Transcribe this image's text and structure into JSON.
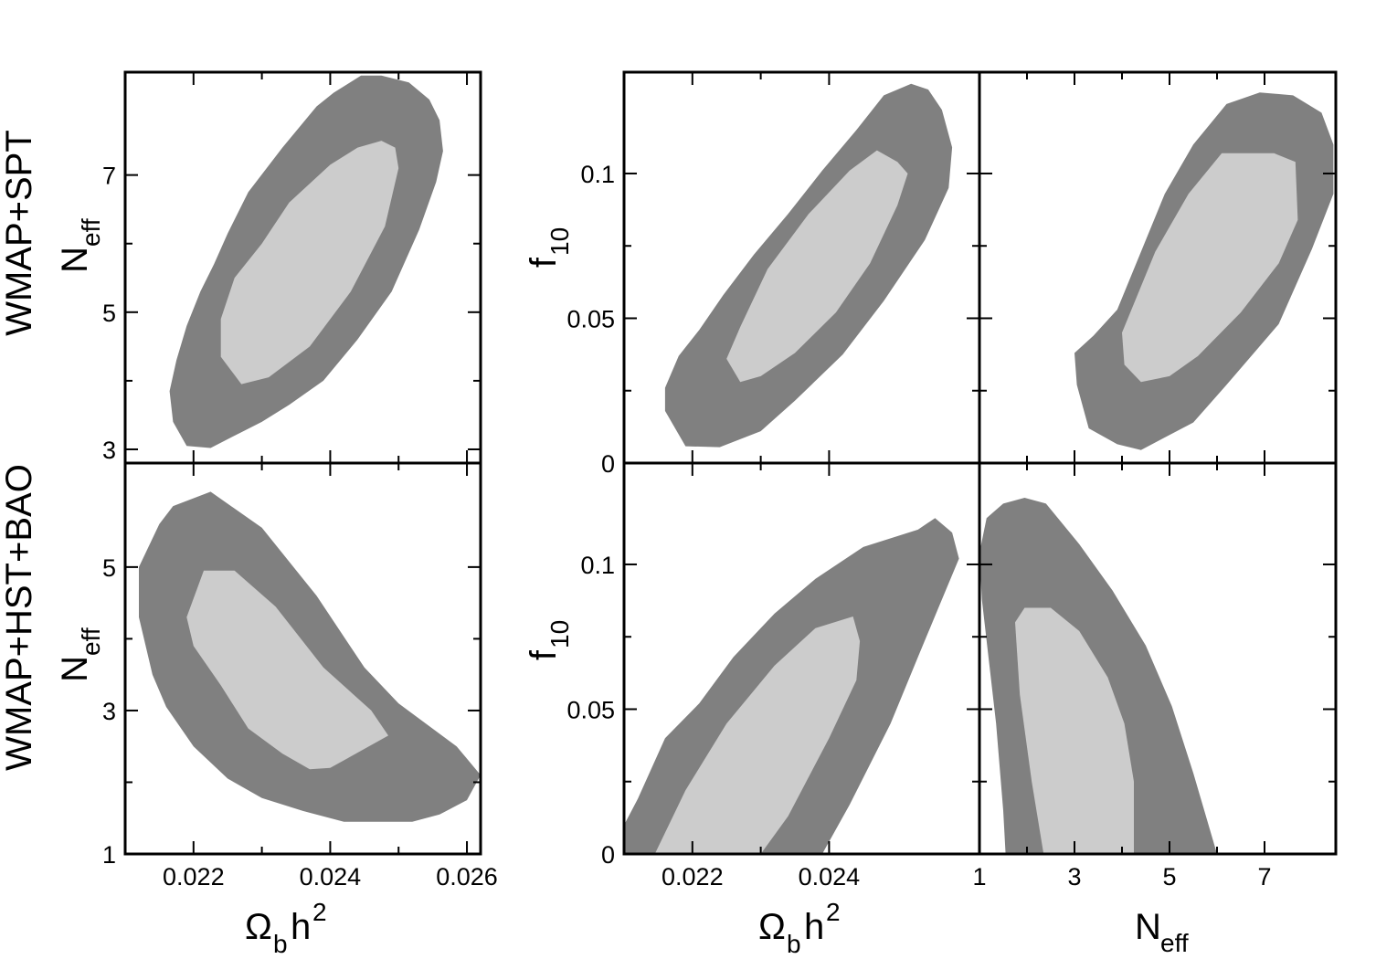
{
  "colors": {
    "outer_contour": "#808080",
    "inner_contour": "#cccccc",
    "frame": "#000000"
  },
  "row_labels": [
    "WMAP+SPT",
    "WMAP+HST+BAO"
  ],
  "axis_titles": {
    "omega": {
      "main": "Ω",
      "sub": "b",
      "rest": "h",
      "sup": "2"
    },
    "neff": {
      "main": "N",
      "sub": "eff"
    },
    "f10": {
      "main": "f",
      "sub": "10"
    }
  },
  "chart_data": [
    {
      "id": "spt-omega-neff",
      "type": "contour",
      "row": "WMAP+SPT",
      "x": "Ωbh2",
      "y": "Neff",
      "xlim": [
        0.021,
        0.0262
      ],
      "ylim": [
        2.8,
        8.5
      ],
      "xticks": [
        0.022,
        0.024,
        0.026
      ],
      "yticks": [
        3,
        5,
        7
      ],
      "yticklabels": [
        "3",
        "5",
        "7"
      ],
      "regions": [
        {
          "level": "outer",
          "points": [
            [
              0.02165,
              3.85
            ],
            [
              0.0217,
              3.4
            ],
            [
              0.0219,
              3.05
            ],
            [
              0.02225,
              3.02
            ],
            [
              0.0227,
              3.25
            ],
            [
              0.023,
              3.4
            ],
            [
              0.0234,
              3.65
            ],
            [
              0.0239,
              4.0
            ],
            [
              0.0244,
              4.6
            ],
            [
              0.0249,
              5.3
            ],
            [
              0.0253,
              6.2
            ],
            [
              0.02555,
              6.9
            ],
            [
              0.02565,
              7.35
            ],
            [
              0.0256,
              7.8
            ],
            [
              0.02545,
              8.1
            ],
            [
              0.02515,
              8.35
            ],
            [
              0.02475,
              8.45
            ],
            [
              0.02445,
              8.45
            ],
            [
              0.02405,
              8.2
            ],
            [
              0.0238,
              8.0
            ],
            [
              0.0233,
              7.4
            ],
            [
              0.0228,
              6.75
            ],
            [
              0.0225,
              6.15
            ],
            [
              0.0223,
              5.7
            ],
            [
              0.0221,
              5.3
            ],
            [
              0.0219,
              4.8
            ],
            [
              0.02175,
              4.3
            ],
            [
              0.02165,
              3.85
            ]
          ]
        },
        {
          "level": "inner",
          "points": [
            [
              0.0224,
              4.35
            ],
            [
              0.0227,
              3.95
            ],
            [
              0.0231,
              4.05
            ],
            [
              0.0237,
              4.5
            ],
            [
              0.0243,
              5.3
            ],
            [
              0.0248,
              6.25
            ],
            [
              0.025,
              7.1
            ],
            [
              0.02495,
              7.4
            ],
            [
              0.02475,
              7.5
            ],
            [
              0.0244,
              7.4
            ],
            [
              0.024,
              7.15
            ],
            [
              0.0234,
              6.6
            ],
            [
              0.023,
              6.0
            ],
            [
              0.0226,
              5.5
            ],
            [
              0.0224,
              4.9
            ],
            [
              0.0224,
              4.35
            ]
          ]
        }
      ]
    },
    {
      "id": "spt-omega-f10",
      "type": "contour",
      "row": "WMAP+SPT",
      "x": "Ωbh2",
      "y": "f10",
      "xlim": [
        0.021,
        0.0262
      ],
      "ylim": [
        0,
        0.135
      ],
      "xticks": [
        0.022,
        0.024
      ],
      "yticks": [
        0,
        0.05,
        0.1
      ],
      "yticklabels": [
        "0",
        "0.05",
        "0.1"
      ],
      "regions": [
        {
          "level": "outer",
          "points": [
            [
              0.0216,
              0.026
            ],
            [
              0.0216,
              0.018
            ],
            [
              0.0219,
              0.0058
            ],
            [
              0.0224,
              0.0055
            ],
            [
              0.023,
              0.011
            ],
            [
              0.0235,
              0.0215
            ],
            [
              0.0242,
              0.0375
            ],
            [
              0.0248,
              0.056
            ],
            [
              0.0254,
              0.077
            ],
            [
              0.02575,
              0.095
            ],
            [
              0.0258,
              0.109
            ],
            [
              0.02565,
              0.122
            ],
            [
              0.02545,
              0.129
            ],
            [
              0.0252,
              0.131
            ],
            [
              0.0248,
              0.127
            ],
            [
              0.0244,
              0.115
            ],
            [
              0.0239,
              0.101
            ],
            [
              0.0234,
              0.086
            ],
            [
              0.0229,
              0.072
            ],
            [
              0.02245,
              0.058
            ],
            [
              0.0221,
              0.046
            ],
            [
              0.0218,
              0.037
            ],
            [
              0.0216,
              0.026
            ]
          ]
        },
        {
          "level": "inner",
          "points": [
            [
              0.0225,
              0.036
            ],
            [
              0.0227,
              0.028
            ],
            [
              0.023,
              0.03
            ],
            [
              0.0235,
              0.038
            ],
            [
              0.0241,
              0.052
            ],
            [
              0.0246,
              0.069
            ],
            [
              0.025,
              0.089
            ],
            [
              0.02515,
              0.1
            ],
            [
              0.025,
              0.104
            ],
            [
              0.0247,
              0.108
            ],
            [
              0.0243,
              0.101
            ],
            [
              0.0237,
              0.086
            ],
            [
              0.0231,
              0.067
            ],
            [
              0.0227,
              0.047
            ],
            [
              0.0225,
              0.036
            ]
          ]
        }
      ]
    },
    {
      "id": "spt-neff-f10",
      "type": "contour",
      "row": "WMAP+SPT",
      "x": "Neff",
      "y": "f10",
      "xlim": [
        1,
        8.5
      ],
      "ylim": [
        0,
        0.135
      ],
      "xticks": [
        1,
        3,
        5,
        7
      ],
      "yticks": [
        0,
        0.05,
        0.1
      ],
      "regions": [
        {
          "level": "outer",
          "points": [
            [
              3.0,
              0.038
            ],
            [
              3.05,
              0.027
            ],
            [
              3.3,
              0.012
            ],
            [
              3.9,
              0.0065
            ],
            [
              4.4,
              0.0045
            ],
            [
              5.5,
              0.014
            ],
            [
              6.2,
              0.027
            ],
            [
              7.3,
              0.048
            ],
            [
              8.0,
              0.074
            ],
            [
              8.45,
              0.093
            ],
            [
              8.45,
              0.11
            ],
            [
              8.2,
              0.121
            ],
            [
              7.6,
              0.127
            ],
            [
              6.9,
              0.128
            ],
            [
              6.2,
              0.124
            ],
            [
              5.5,
              0.11
            ],
            [
              4.9,
              0.093
            ],
            [
              4.4,
              0.073
            ],
            [
              3.9,
              0.053
            ],
            [
              3.4,
              0.044
            ],
            [
              3.0,
              0.038
            ]
          ]
        },
        {
          "level": "inner",
          "points": [
            [
              4.0,
              0.045
            ],
            [
              4.05,
              0.034
            ],
            [
              4.4,
              0.028
            ],
            [
              5.0,
              0.03
            ],
            [
              5.6,
              0.037
            ],
            [
              6.5,
              0.052
            ],
            [
              7.3,
              0.069
            ],
            [
              7.7,
              0.084
            ],
            [
              7.65,
              0.104
            ],
            [
              7.2,
              0.107
            ],
            [
              6.1,
              0.107
            ],
            [
              5.4,
              0.093
            ],
            [
              4.7,
              0.073
            ],
            [
              4.0,
              0.045
            ]
          ]
        }
      ]
    },
    {
      "id": "bao-omega-neff",
      "type": "contour",
      "row": "WMAP+HST+BAO",
      "x": "Ωbh2",
      "y": "Neff",
      "xlim": [
        0.021,
        0.0262
      ],
      "ylim": [
        1,
        6.45
      ],
      "xticks": [
        0.022,
        0.024,
        0.026
      ],
      "xticklabels": [
        "0.022",
        "0.024",
        "0.026"
      ],
      "yticks": [
        1,
        3,
        5
      ],
      "yticklabels": [
        "1",
        "3",
        "5"
      ],
      "regions": [
        {
          "level": "outer",
          "points": [
            [
              0.0212,
              4.3
            ],
            [
              0.0212,
              5.0
            ],
            [
              0.0215,
              5.6
            ],
            [
              0.0217,
              5.85
            ],
            [
              0.02225,
              6.05
            ],
            [
              0.023,
              5.55
            ],
            [
              0.0238,
              4.6
            ],
            [
              0.0245,
              3.6
            ],
            [
              0.025,
              3.1
            ],
            [
              0.02585,
              2.5
            ],
            [
              0.0262,
              2.1
            ],
            [
              0.026,
              1.75
            ],
            [
              0.0256,
              1.55
            ],
            [
              0.0252,
              1.45
            ],
            [
              0.0248,
              1.45
            ],
            [
              0.0242,
              1.45
            ],
            [
              0.0236,
              1.6
            ],
            [
              0.023,
              1.78
            ],
            [
              0.0225,
              2.05
            ],
            [
              0.022,
              2.5
            ],
            [
              0.0216,
              3.05
            ],
            [
              0.0214,
              3.5
            ],
            [
              0.0212,
              4.3
            ]
          ]
        },
        {
          "level": "inner",
          "points": [
            [
              0.0219,
              4.3
            ],
            [
              0.02215,
              4.95
            ],
            [
              0.0226,
              4.95
            ],
            [
              0.0232,
              4.45
            ],
            [
              0.0239,
              3.6
            ],
            [
              0.0246,
              3.0
            ],
            [
              0.02485,
              2.65
            ],
            [
              0.024,
              2.2
            ],
            [
              0.0237,
              2.18
            ],
            [
              0.0233,
              2.4
            ],
            [
              0.0228,
              2.75
            ],
            [
              0.0224,
              3.35
            ],
            [
              0.022,
              3.9
            ],
            [
              0.0219,
              4.3
            ]
          ]
        }
      ]
    },
    {
      "id": "bao-omega-f10",
      "type": "contour",
      "row": "WMAP+HST+BAO",
      "x": "Ωbh2",
      "y": "f10",
      "xlim": [
        0.021,
        0.0262
      ],
      "ylim": [
        0,
        0.135
      ],
      "xticks": [
        0.022,
        0.024
      ],
      "xticklabels": [
        "0.022",
        "0.024"
      ],
      "yticks": [
        0,
        0.05,
        0.1
      ],
      "yticklabels": [
        "0",
        "0.05",
        "0.1"
      ],
      "regions": [
        {
          "level": "outer",
          "points": [
            [
              0.021,
              0.0
            ],
            [
              0.021,
              0.01
            ],
            [
              0.0212,
              0.019
            ],
            [
              0.0216,
              0.04
            ],
            [
              0.0221,
              0.052
            ],
            [
              0.0226,
              0.068
            ],
            [
              0.0232,
              0.083
            ],
            [
              0.0238,
              0.095
            ],
            [
              0.0245,
              0.106
            ],
            [
              0.0253,
              0.112
            ],
            [
              0.02555,
              0.116
            ],
            [
              0.0258,
              0.111
            ],
            [
              0.0259,
              0.102
            ],
            [
              0.0256,
              0.085
            ],
            [
              0.0253,
              0.068
            ],
            [
              0.0249,
              0.045
            ],
            [
              0.0243,
              0.017
            ],
            [
              0.0239,
              0.0
            ],
            [
              0.021,
              0.0
            ]
          ]
        },
        {
          "level": "inner",
          "points": [
            [
              0.02145,
              0.0
            ],
            [
              0.0219,
              0.022
            ],
            [
              0.0225,
              0.045
            ],
            [
              0.0232,
              0.065
            ],
            [
              0.0238,
              0.078
            ],
            [
              0.02435,
              0.082
            ],
            [
              0.02445,
              0.0735
            ],
            [
              0.0244,
              0.06
            ],
            [
              0.024,
              0.04
            ],
            [
              0.0234,
              0.013
            ],
            [
              0.023,
              0.0
            ],
            [
              0.02145,
              0.0
            ]
          ]
        }
      ]
    },
    {
      "id": "bao-neff-f10",
      "type": "contour",
      "row": "WMAP+HST+BAO",
      "x": "Neff",
      "y": "f10",
      "xlim": [
        1,
        8.5
      ],
      "ylim": [
        0,
        0.135
      ],
      "xticks": [
        1,
        3,
        5,
        7
      ],
      "xticklabels": [
        "1",
        "3",
        "5",
        "7"
      ],
      "yticks": [
        0,
        0.05,
        0.1
      ],
      "regions": [
        {
          "level": "outer",
          "points": [
            [
              1.55,
              0.0
            ],
            [
              1.5,
              0.015
            ],
            [
              1.35,
              0.045
            ],
            [
              1.05,
              0.088
            ],
            [
              1.0,
              0.104
            ],
            [
              1.15,
              0.116
            ],
            [
              1.5,
              0.121
            ],
            [
              1.95,
              0.123
            ],
            [
              2.4,
              0.121
            ],
            [
              3.1,
              0.107
            ],
            [
              3.8,
              0.091
            ],
            [
              4.5,
              0.072
            ],
            [
              5.05,
              0.051
            ],
            [
              5.5,
              0.028
            ],
            [
              6.0,
              0.0
            ],
            [
              1.55,
              0.0
            ]
          ]
        },
        {
          "level": "inner",
          "points": [
            [
              2.35,
              0.0
            ],
            [
              2.1,
              0.025
            ],
            [
              1.85,
              0.055
            ],
            [
              1.75,
              0.08
            ],
            [
              1.95,
              0.085
            ],
            [
              2.5,
              0.085
            ],
            [
              3.1,
              0.077
            ],
            [
              3.7,
              0.061
            ],
            [
              4.05,
              0.045
            ],
            [
              4.25,
              0.025
            ],
            [
              4.25,
              0.0
            ],
            [
              2.35,
              0.0
            ]
          ]
        }
      ]
    }
  ]
}
